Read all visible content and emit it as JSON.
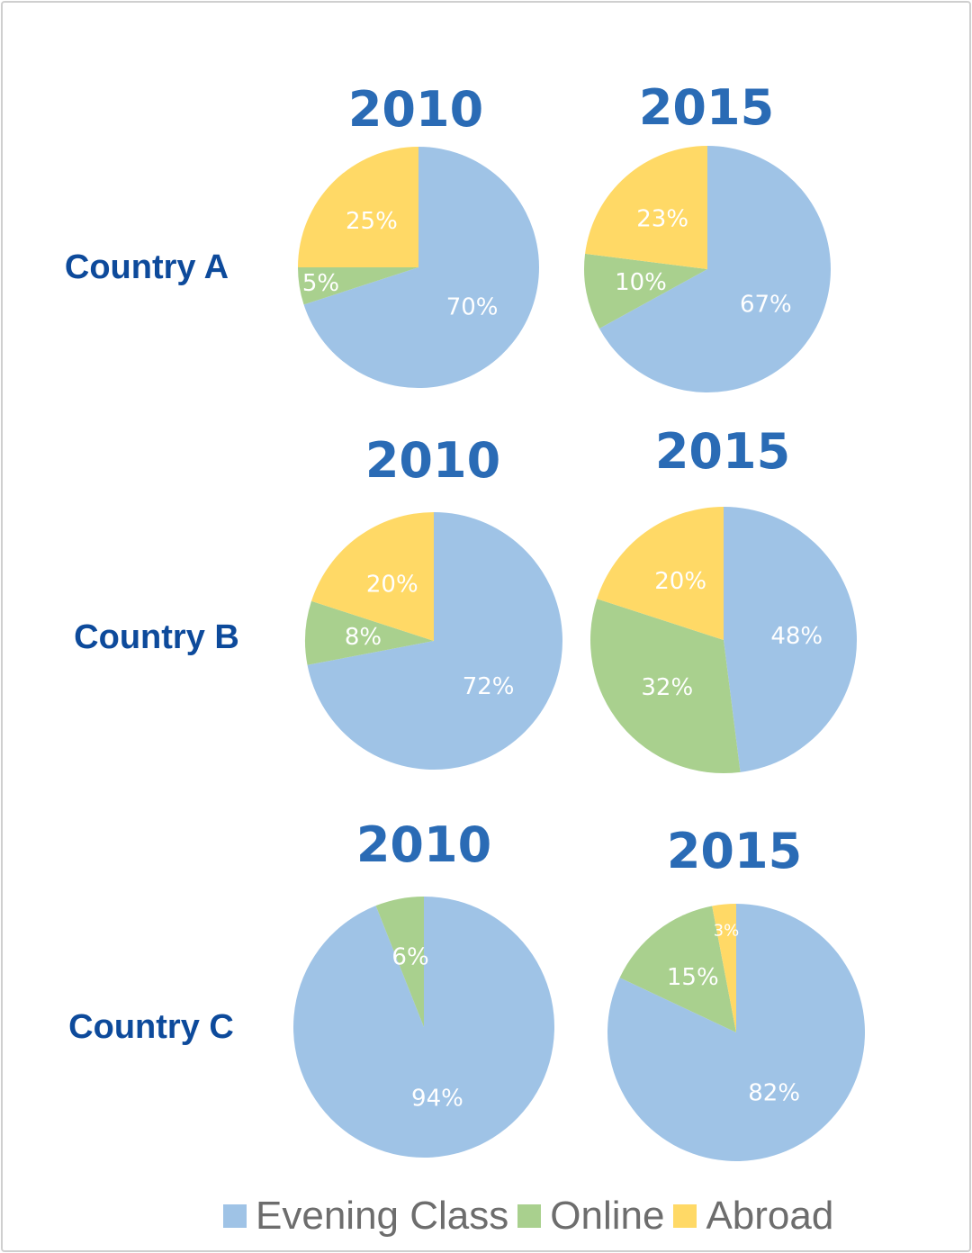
{
  "chart_data": {
    "type": "pie",
    "categories": [
      "Evening Class",
      "Online",
      "Abroad"
    ],
    "colors": {
      "Evening Class": "#9fc3e6",
      "Online": "#a9d08e",
      "Abroad": "#ffd966"
    },
    "title_color": "#2a6bb5",
    "label_color": "#0d4a9b",
    "rows": [
      {
        "country": "Country A",
        "pies": [
          {
            "year": "2010",
            "values": [
              70,
              5,
              25
            ],
            "labels": [
              "70%",
              "5%",
              "25%"
            ]
          },
          {
            "year": "2015",
            "values": [
              67,
              10,
              23
            ],
            "labels": [
              "67%",
              "10%",
              "23%"
            ]
          }
        ]
      },
      {
        "country": "Country B",
        "pies": [
          {
            "year": "2010",
            "values": [
              72,
              8,
              20
            ],
            "labels": [
              "72%",
              "8%",
              "20%"
            ]
          },
          {
            "year": "2015",
            "values": [
              48,
              32,
              20
            ],
            "labels": [
              "48%",
              "32%",
              "20%"
            ]
          }
        ]
      },
      {
        "country": "Country C",
        "pies": [
          {
            "year": "2010",
            "values": [
              94,
              6,
              0
            ],
            "labels": [
              "94%",
              "6%",
              ""
            ]
          },
          {
            "year": "2015",
            "values": [
              82,
              15,
              3
            ],
            "labels": [
              "82%",
              "15%",
              "3%"
            ]
          }
        ]
      }
    ],
    "legend": {
      "placement": "bottom",
      "items": [
        "Evening Class",
        "Online",
        "Abroad"
      ]
    }
  }
}
